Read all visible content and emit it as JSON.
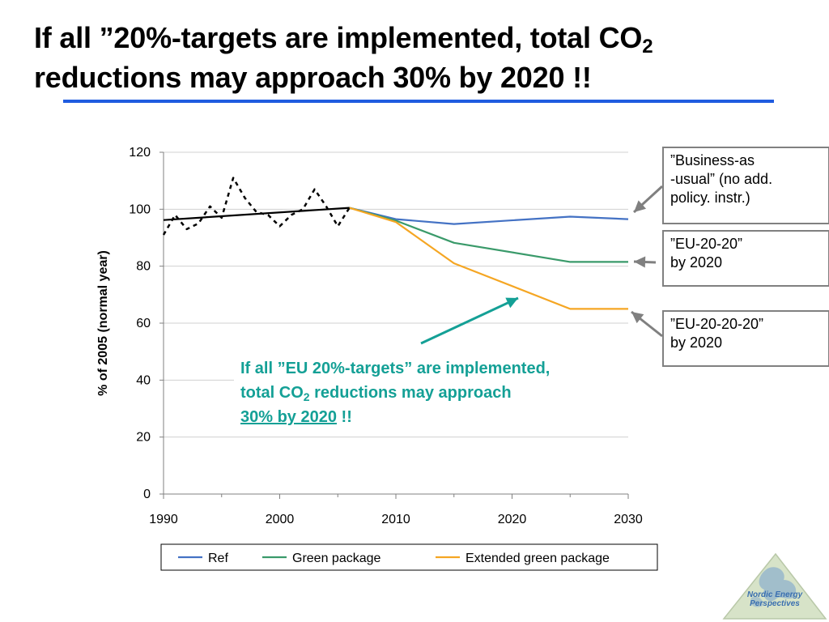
{
  "title": {
    "line1_pre": "If all ”20%-targets are implemented, total CO",
    "line1_sub": "2",
    "line2": "reductions may approach 30% by 2020 !!"
  },
  "colors": {
    "rule": "#1f5ce0",
    "ref": "#4472c4",
    "green": "#3a9a6a",
    "extended": "#f5a623",
    "historic": "#000000",
    "annotation": "#14a096",
    "callout_border": "#808080"
  },
  "chart_data": {
    "type": "line",
    "ylabel": "% of 2005 (normal year)",
    "xlabel": "",
    "xlim": [
      1990,
      2030
    ],
    "ylim": [
      0,
      120
    ],
    "x_ticks": [
      "1990",
      "2000",
      "2010",
      "2020",
      "2030"
    ],
    "y_ticks": [
      "0",
      "20",
      "40",
      "60",
      "80",
      "100",
      "120"
    ],
    "grid": "horizontal",
    "legend": "bottom",
    "series": [
      {
        "name": "Ref",
        "color": "#4472c4",
        "style": "solid",
        "in_legend": true,
        "points": [
          [
            2006,
            100.5
          ],
          [
            2010,
            96.5
          ],
          [
            2015,
            94.8
          ],
          [
            2025,
            97.4
          ],
          [
            2030,
            96.5
          ]
        ]
      },
      {
        "name": "Green package",
        "color": "#3a9a6a",
        "style": "solid",
        "in_legend": true,
        "points": [
          [
            2006,
            100.5
          ],
          [
            2010,
            96.0
          ],
          [
            2015,
            88.2
          ],
          [
            2025,
            81.5
          ],
          [
            2030,
            81.5
          ]
        ]
      },
      {
        "name": "Extended green package",
        "color": "#f5a623",
        "style": "solid",
        "in_legend": true,
        "points": [
          [
            2006,
            100.5
          ],
          [
            2010,
            95.5
          ],
          [
            2015,
            81.0
          ],
          [
            2025,
            65.0
          ],
          [
            2030,
            65.0
          ]
        ]
      },
      {
        "name": "",
        "color": "#000000",
        "style": "dotted",
        "in_legend": false,
        "points": [
          [
            1990,
            91
          ],
          [
            1991,
            98
          ],
          [
            1992,
            93
          ],
          [
            1993,
            95
          ],
          [
            1994,
            101
          ],
          [
            1995,
            97
          ],
          [
            1996,
            111
          ],
          [
            1997,
            104
          ],
          [
            1998,
            99
          ],
          [
            1999,
            98
          ],
          [
            2000,
            94
          ],
          [
            2001,
            98
          ],
          [
            2002,
            100
          ],
          [
            2003,
            107
          ],
          [
            2004,
            101
          ],
          [
            2005,
            94
          ],
          [
            2006,
            100.5
          ]
        ]
      },
      {
        "name": "",
        "color": "#000000",
        "style": "solid",
        "in_legend": false,
        "points": [
          [
            1990,
            96.2
          ],
          [
            2006,
            100.5
          ]
        ]
      }
    ]
  },
  "callouts": [
    {
      "lines": [
        "”Business-as",
        "-usual” (no add.",
        "policy. instr.)"
      ]
    },
    {
      "lines": [
        "”EU-20-20”",
        "by 2020"
      ]
    },
    {
      "lines": [
        "”EU-20-20-20”",
        "by 2020"
      ]
    }
  ],
  "annotation": {
    "line1": "If all ”EU 20%-targets” are implemented,",
    "line2_pre": "total CO",
    "line2_sub": "2",
    "line2_post": " reductions may approach",
    "line3_underlined": "30% by 2020",
    "line3_post": " !!"
  },
  "logo": {
    "text": "Nordic Energy Perspectives"
  }
}
